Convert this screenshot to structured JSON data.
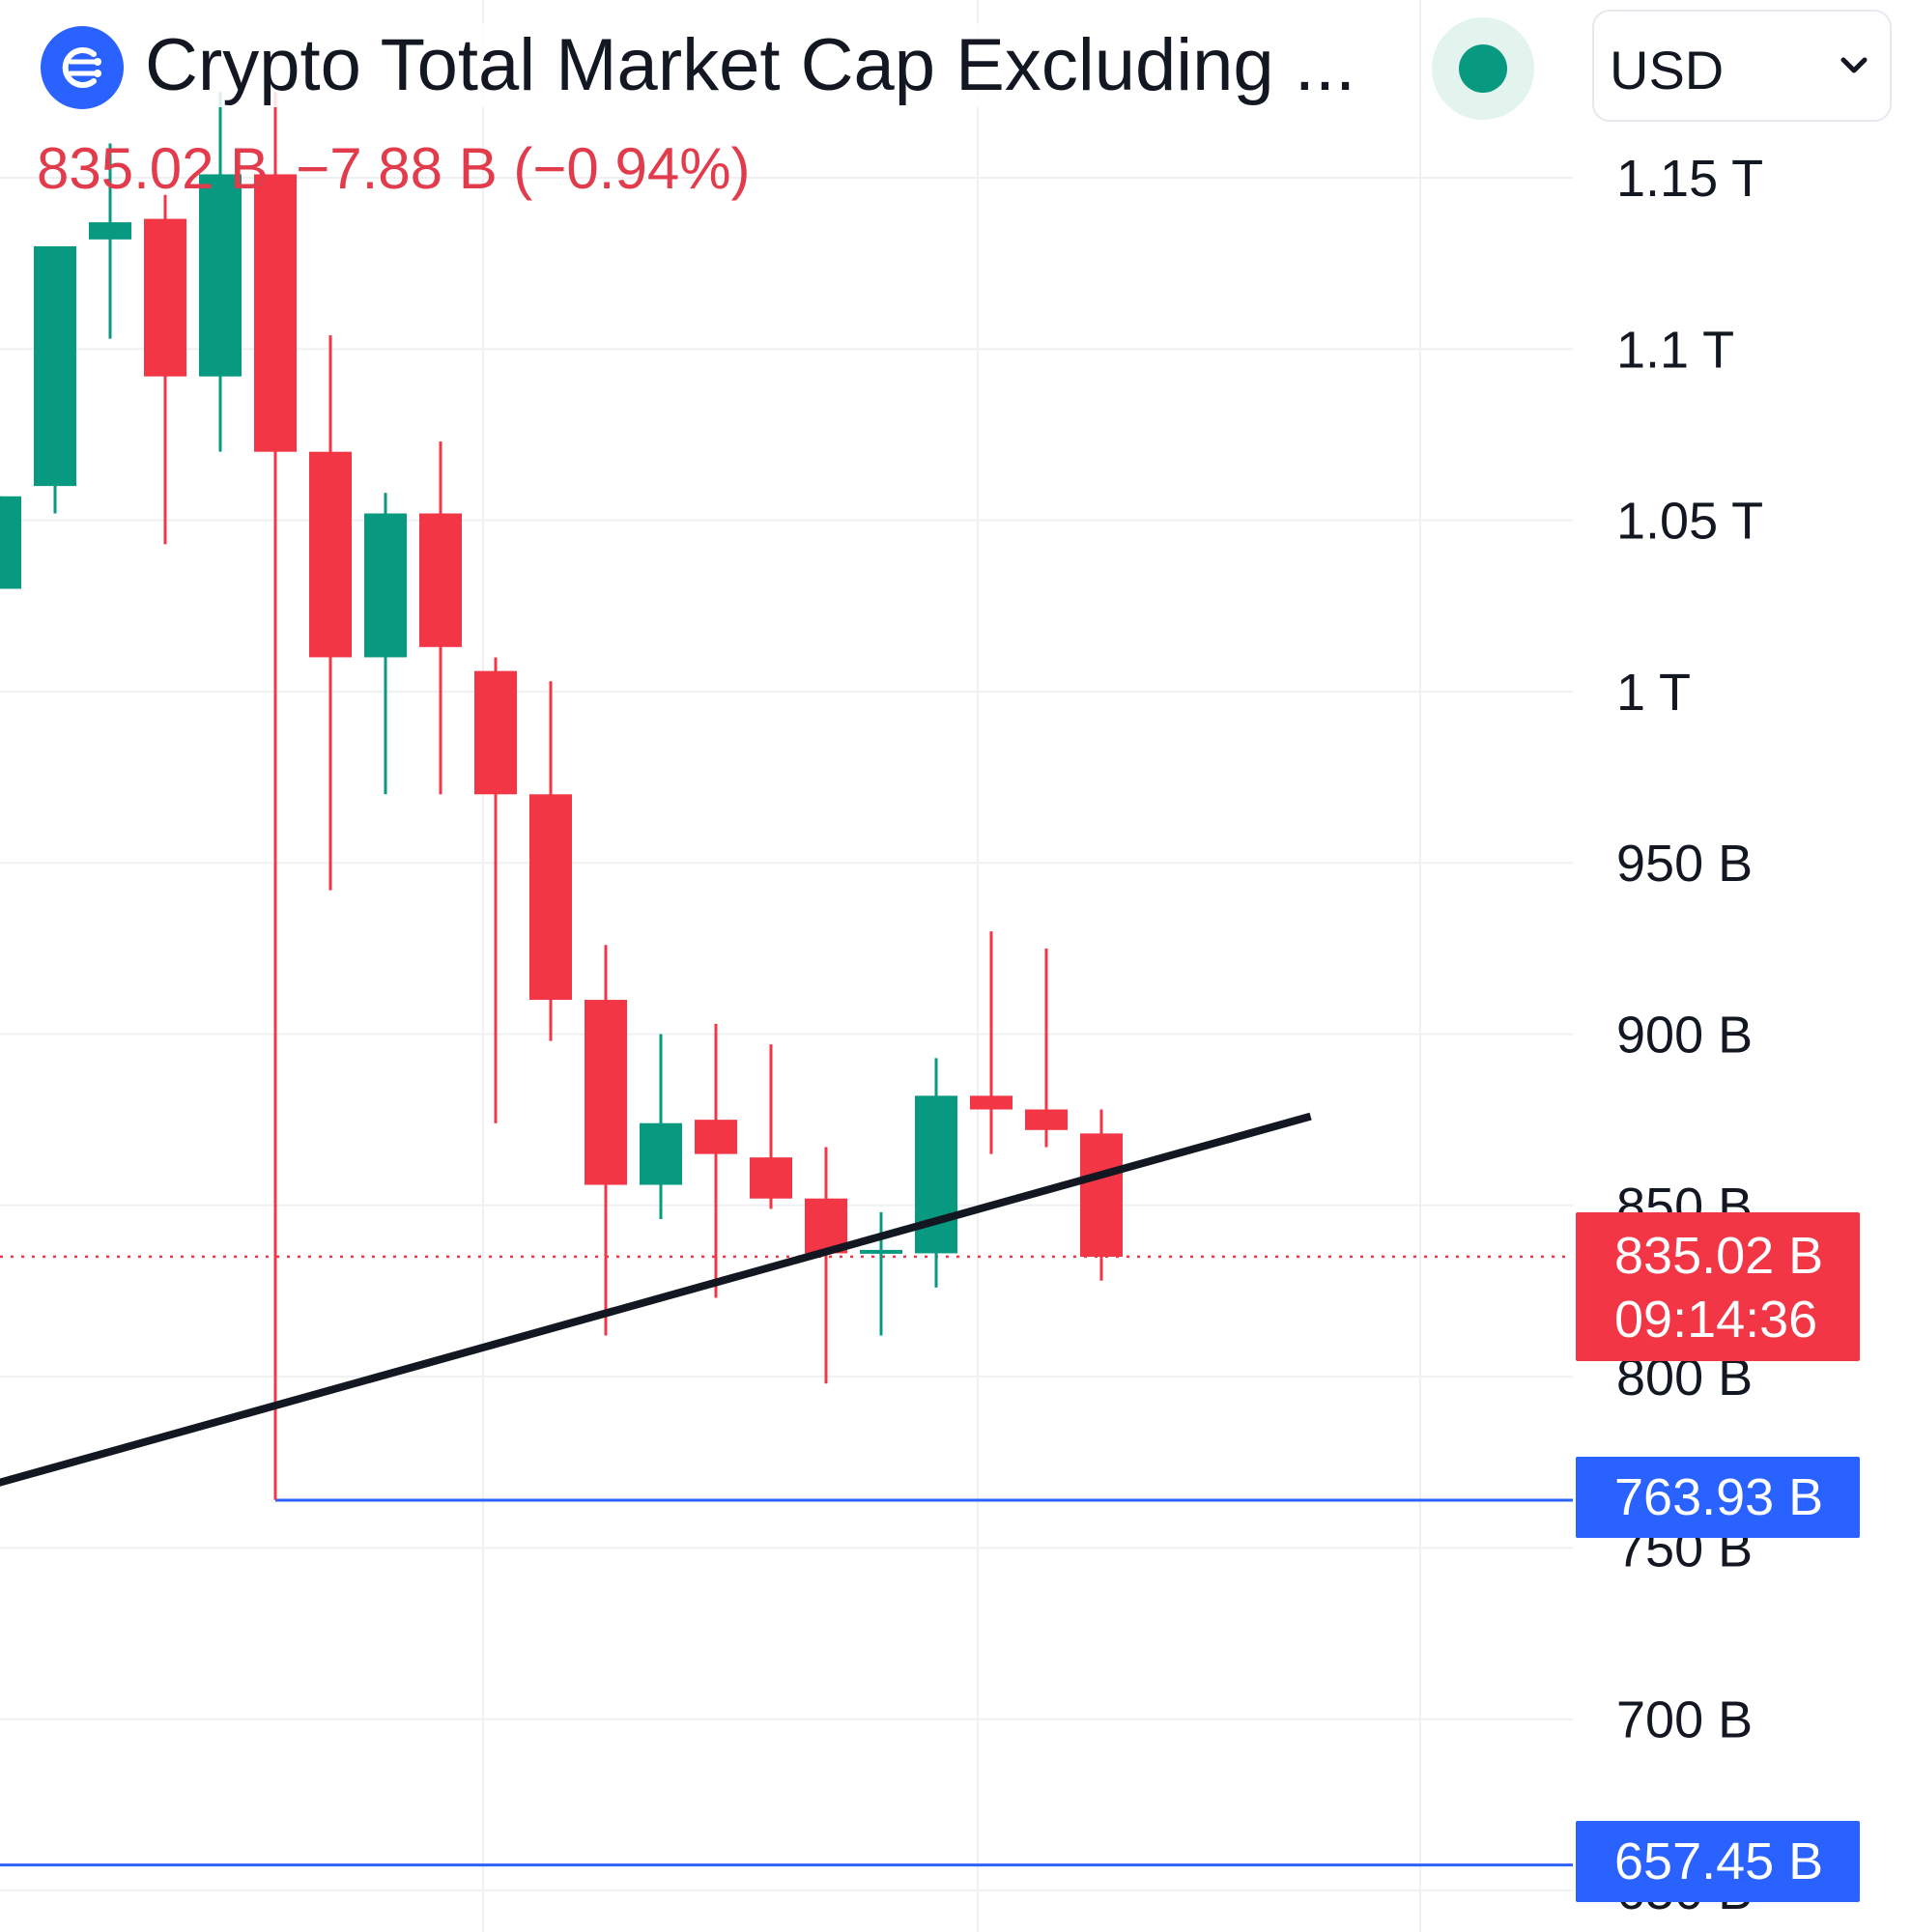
{
  "header": {
    "title": "Crypto Total Market Cap Excluding ...",
    "price": "835.02 B",
    "change": "−7.88 B (−0.94%)",
    "currency": "USD"
  },
  "price_tags": {
    "last_price": "835.02 B",
    "countdown": "09:14:36",
    "level_1": "763.93 B",
    "level_2": "657.45 B"
  },
  "colors": {
    "up": "#089981",
    "down": "#f23645",
    "grid": "#eef0f3",
    "trendline": "#131722",
    "level_line": "#2962ff",
    "brand": "#2962ff"
  },
  "icons": {
    "logo": "symbol-logo-icon",
    "live": "live-status-icon",
    "dropdown": "chevron-down-icon"
  },
  "chart_data": {
    "type": "candlestick",
    "title": "Crypto Total Market Cap Excluding ...",
    "unit": "B",
    "ylim": [
      600,
      1170
    ],
    "y_ticks": [
      {
        "value": 650,
        "label": "650 B"
      },
      {
        "value": 700,
        "label": "700 B"
      },
      {
        "value": 750,
        "label": "750 B"
      },
      {
        "value": 800,
        "label": "800 B"
      },
      {
        "value": 850,
        "label": "850 B"
      },
      {
        "value": 900,
        "label": "900 B"
      },
      {
        "value": 950,
        "label": "950 B"
      },
      {
        "value": 1000,
        "label": "1 T"
      },
      {
        "value": 1050,
        "label": "1.05 T"
      },
      {
        "value": 1100,
        "label": "1.1 T"
      },
      {
        "value": 1150,
        "label": "1.15 T"
      }
    ],
    "candles": [
      {
        "open": 1030,
        "high": 1057,
        "low": 1030,
        "close": 1057
      },
      {
        "open": 1060,
        "high": 1128,
        "low": 1052,
        "close": 1130
      },
      {
        "open": 1132,
        "high": 1160,
        "low": 1103,
        "close": 1137
      },
      {
        "open": 1138,
        "high": 1145,
        "low": 1043,
        "close": 1092
      },
      {
        "open": 1092,
        "high": 1175,
        "low": 1070,
        "close": 1151
      },
      {
        "open": 1151,
        "high": 1175,
        "low": 764,
        "close": 1070
      },
      {
        "open": 1070,
        "high": 1104,
        "low": 942,
        "close": 1010
      },
      {
        "open": 1010,
        "high": 1058,
        "low": 970,
        "close": 1052
      },
      {
        "open": 1052,
        "high": 1073,
        "low": 970,
        "close": 1013
      },
      {
        "open": 1006,
        "high": 1010,
        "low": 874,
        "close": 970
      },
      {
        "open": 970,
        "high": 1003,
        "low": 898,
        "close": 910
      },
      {
        "open": 910,
        "high": 926,
        "low": 812,
        "close": 856
      },
      {
        "open": 856,
        "high": 900,
        "low": 846,
        "close": 874
      },
      {
        "open": 875,
        "high": 903,
        "low": 823,
        "close": 865
      },
      {
        "open": 864,
        "high": 897,
        "low": 849,
        "close": 852
      },
      {
        "open": 852,
        "high": 867,
        "low": 798,
        "close": 836
      },
      {
        "open": 836,
        "high": 848,
        "low": 812,
        "close": 837
      },
      {
        "open": 836,
        "high": 893,
        "low": 826,
        "close": 882
      },
      {
        "open": 882,
        "high": 930,
        "low": 865,
        "close": 878
      },
      {
        "open": 878,
        "high": 925,
        "low": 867,
        "close": 872
      },
      {
        "open": 871,
        "high": 878,
        "low": 828,
        "close": 835
      }
    ],
    "last_price": 835.02,
    "horizontal_levels": [
      763.93,
      657.45
    ],
    "trendline": {
      "from": {
        "candle": -4.7,
        "value": 748
      },
      "to": {
        "candle": 23.8,
        "value": 876
      }
    },
    "grid": true
  }
}
